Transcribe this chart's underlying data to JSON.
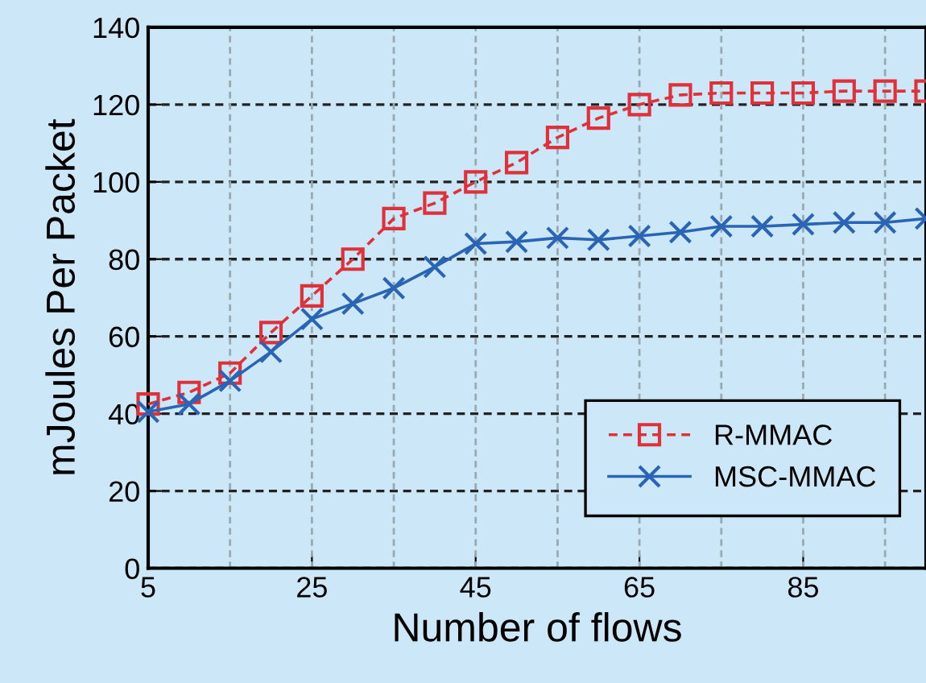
{
  "chart_data": {
    "type": "line",
    "xlabel": "Number of flows",
    "ylabel": "mJoules Per Packet",
    "x": [
      5,
      10,
      15,
      20,
      25,
      30,
      35,
      40,
      45,
      50,
      55,
      60,
      65,
      70,
      75,
      80,
      85,
      90,
      95,
      100
    ],
    "series": [
      {
        "name": "R-MMAC",
        "color": "#e0303a",
        "marker": "square",
        "line_style": "dashed",
        "values": [
          42.5,
          45.5,
          50.5,
          61,
          70.5,
          80,
          90.5,
          94.5,
          100,
          105,
          111.5,
          116.5,
          120,
          122.5,
          123,
          123,
          123,
          123.5,
          123.5,
          123.5
        ]
      },
      {
        "name": "MSC-MMAC",
        "color": "#2a64b4",
        "marker": "cross",
        "line_style": "solid",
        "values": [
          40.5,
          42.5,
          48.5,
          56,
          64.5,
          68.5,
          72.5,
          78,
          84,
          84.5,
          85.5,
          85,
          86,
          87,
          88.5,
          88.5,
          89,
          89.5,
          89.5,
          90.5
        ]
      }
    ],
    "xlim": [
      5,
      100
    ],
    "xticks": [
      5,
      25,
      45,
      65,
      85
    ],
    "ylim": [
      0,
      140
    ],
    "yticks": [
      0,
      20,
      40,
      60,
      80,
      100,
      120,
      140
    ],
    "grid": true,
    "legend": "bottom right"
  }
}
